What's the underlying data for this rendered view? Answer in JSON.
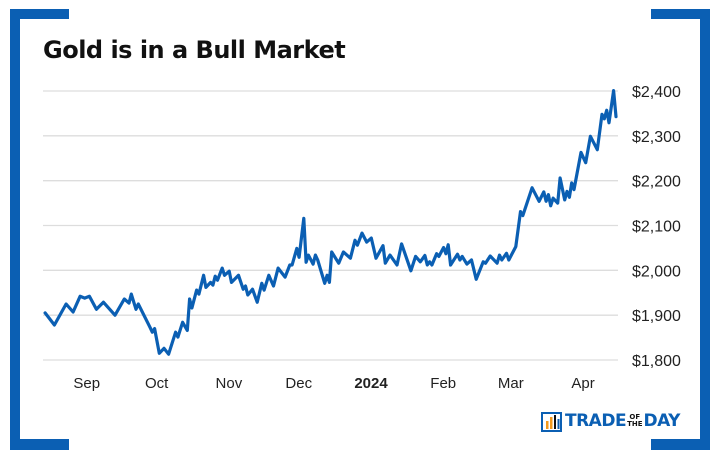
{
  "colors": {
    "accent": "#0b5fb3",
    "line": "#0b5fb3",
    "grid": "#dddddd",
    "text": "#222222"
  },
  "logo": {
    "text_main": "TRADE",
    "text_of": "OF",
    "text_the": "THE",
    "text_end": "DAY",
    "icon": "bar-chart-icon"
  },
  "chart_data": {
    "type": "line",
    "title": "Gold is in a Bull Market",
    "xlabel": "",
    "ylabel": "",
    "ylim": [
      1800,
      2400
    ],
    "grid": true,
    "y_ticks": [
      1800,
      1900,
      2000,
      2100,
      2200,
      2300,
      2400
    ],
    "y_tick_labels": [
      "$1,800",
      "$1,900",
      "$2,000",
      "$2,100",
      "$2,200",
      "$2,300",
      "$2,400"
    ],
    "x_ticks": [
      {
        "date": "2023-09-01",
        "label": "Sep",
        "bold": false
      },
      {
        "date": "2023-10-01",
        "label": "Oct",
        "bold": false
      },
      {
        "date": "2023-11-01",
        "label": "Nov",
        "bold": false
      },
      {
        "date": "2023-12-01",
        "label": "Dec",
        "bold": false
      },
      {
        "date": "2024-01-01",
        "label": "2024",
        "bold": true
      },
      {
        "date": "2024-02-01",
        "label": "Feb",
        "bold": false
      },
      {
        "date": "2024-03-01",
        "label": "Mar",
        "bold": false
      },
      {
        "date": "2024-04-01",
        "label": "Apr",
        "bold": false
      }
    ],
    "series": [
      {
        "points": [
          [
            "2023-08-15",
            1905
          ],
          [
            "2023-08-19",
            1878
          ],
          [
            "2023-08-24",
            1925
          ],
          [
            "2023-08-27",
            1907
          ],
          [
            "2023-08-30",
            1942
          ],
          [
            "2023-09-01",
            1938
          ],
          [
            "2023-09-03",
            1942
          ],
          [
            "2023-09-06",
            1913
          ],
          [
            "2023-09-09",
            1929
          ],
          [
            "2023-09-14",
            1900
          ],
          [
            "2023-09-18",
            1936
          ],
          [
            "2023-09-20",
            1927
          ],
          [
            "2023-09-21",
            1947
          ],
          [
            "2023-09-23",
            1913
          ],
          [
            "2023-09-24",
            1925
          ],
          [
            "2023-09-29",
            1873
          ],
          [
            "2023-09-30",
            1862
          ],
          [
            "2023-10-01",
            1870
          ],
          [
            "2023-10-03",
            1815
          ],
          [
            "2023-10-05",
            1826
          ],
          [
            "2023-10-07",
            1813
          ],
          [
            "2023-10-10",
            1862
          ],
          [
            "2023-10-11",
            1851
          ],
          [
            "2023-10-13",
            1884
          ],
          [
            "2023-10-15",
            1866
          ],
          [
            "2023-10-16",
            1936
          ],
          [
            "2023-10-17",
            1916
          ],
          [
            "2023-10-19",
            1956
          ],
          [
            "2023-10-20",
            1947
          ],
          [
            "2023-10-22",
            1989
          ],
          [
            "2023-10-23",
            1962
          ],
          [
            "2023-10-25",
            1973
          ],
          [
            "2023-10-26",
            1967
          ],
          [
            "2023-10-27",
            1987
          ],
          [
            "2023-10-28",
            1978
          ],
          [
            "2023-10-30",
            2005
          ],
          [
            "2023-10-31",
            1989
          ],
          [
            "2023-11-02",
            1998
          ],
          [
            "2023-11-03",
            1973
          ],
          [
            "2023-11-06",
            1989
          ],
          [
            "2023-11-08",
            1958
          ],
          [
            "2023-11-09",
            1965
          ],
          [
            "2023-11-10",
            1945
          ],
          [
            "2023-11-12",
            1958
          ],
          [
            "2023-11-14",
            1929
          ],
          [
            "2023-11-16",
            1971
          ],
          [
            "2023-11-17",
            1956
          ],
          [
            "2023-11-19",
            1989
          ],
          [
            "2023-11-21",
            1965
          ],
          [
            "2023-11-23",
            2005
          ],
          [
            "2023-11-26",
            1985
          ],
          [
            "2023-11-28",
            2012
          ],
          [
            "2023-11-29",
            2012
          ],
          [
            "2023-12-01",
            2049
          ],
          [
            "2023-12-02",
            2029
          ],
          [
            "2023-12-04",
            2116
          ],
          [
            "2023-12-05",
            2018
          ],
          [
            "2023-12-06",
            2034
          ],
          [
            "2023-12-08",
            2014
          ],
          [
            "2023-12-09",
            2034
          ],
          [
            "2023-12-10",
            2023
          ],
          [
            "2023-12-13",
            1971
          ],
          [
            "2023-12-14",
            1989
          ],
          [
            "2023-12-15",
            1973
          ],
          [
            "2023-12-16",
            2041
          ],
          [
            "2023-12-19",
            2016
          ],
          [
            "2023-12-21",
            2041
          ],
          [
            "2023-12-24",
            2027
          ],
          [
            "2023-12-26",
            2067
          ],
          [
            "2023-12-27",
            2056
          ],
          [
            "2023-12-29",
            2083
          ],
          [
            "2023-12-31",
            2063
          ],
          [
            "2024-01-02",
            2072
          ],
          [
            "2024-01-04",
            2027
          ],
          [
            "2024-01-07",
            2055
          ],
          [
            "2024-01-08",
            2016
          ],
          [
            "2024-01-10",
            2034
          ],
          [
            "2024-01-13",
            2012
          ],
          [
            "2024-01-15",
            2059
          ],
          [
            "2024-01-19",
            1999
          ],
          [
            "2024-01-21",
            2031
          ],
          [
            "2024-01-23",
            2019
          ],
          [
            "2024-01-25",
            2033
          ],
          [
            "2024-01-26",
            2012
          ],
          [
            "2024-01-27",
            2019
          ],
          [
            "2024-01-28",
            2012
          ],
          [
            "2024-01-30",
            2037
          ],
          [
            "2024-01-31",
            2031
          ],
          [
            "2024-02-02",
            2051
          ],
          [
            "2024-02-03",
            2037
          ],
          [
            "2024-02-04",
            2057
          ],
          [
            "2024-02-05",
            2012
          ],
          [
            "2024-02-08",
            2036
          ],
          [
            "2024-02-09",
            2023
          ],
          [
            "2024-02-10",
            2031
          ],
          [
            "2024-02-12",
            2014
          ],
          [
            "2024-02-14",
            2023
          ],
          [
            "2024-02-16",
            1980
          ],
          [
            "2024-02-19",
            2019
          ],
          [
            "2024-02-20",
            2016
          ],
          [
            "2024-02-22",
            2032
          ],
          [
            "2024-02-25",
            2016
          ],
          [
            "2024-02-26",
            2034
          ],
          [
            "2024-02-27",
            2023
          ],
          [
            "2024-02-29",
            2038
          ],
          [
            "2024-03-01",
            2023
          ],
          [
            "2024-03-04",
            2053
          ],
          [
            "2024-03-06",
            2131
          ],
          [
            "2024-03-07",
            2122
          ],
          [
            "2024-03-11",
            2184
          ],
          [
            "2024-03-14",
            2154
          ],
          [
            "2024-03-16",
            2175
          ],
          [
            "2024-03-17",
            2154
          ],
          [
            "2024-03-18",
            2169
          ],
          [
            "2024-03-19",
            2144
          ],
          [
            "2024-03-20",
            2161
          ],
          [
            "2024-03-22",
            2150
          ],
          [
            "2024-03-23",
            2206
          ],
          [
            "2024-03-25",
            2157
          ],
          [
            "2024-03-26",
            2176
          ],
          [
            "2024-03-27",
            2163
          ],
          [
            "2024-03-28",
            2195
          ],
          [
            "2024-03-29",
            2180
          ],
          [
            "2024-04-01",
            2263
          ],
          [
            "2024-04-03",
            2240
          ],
          [
            "2024-04-05",
            2299
          ],
          [
            "2024-04-08",
            2269
          ],
          [
            "2024-04-10",
            2348
          ],
          [
            "2024-04-11",
            2338
          ],
          [
            "2024-04-12",
            2357
          ],
          [
            "2024-04-13",
            2329
          ],
          [
            "2024-04-15",
            2401
          ],
          [
            "2024-04-16",
            2343
          ]
        ]
      }
    ]
  }
}
